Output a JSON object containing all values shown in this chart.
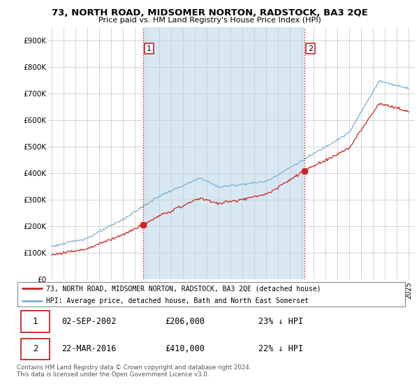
{
  "title": "73, NORTH ROAD, MIDSOMER NORTON, RADSTOCK, BA3 2QE",
  "subtitle": "Price paid vs. HM Land Registry's House Price Index (HPI)",
  "hpi_color": "#7BAFD4",
  "hpi_fill_color": "#D8E8F3",
  "price_color": "#CC2222",
  "vline_color": "#CC2222",
  "background_color": "#ffffff",
  "grid_color": "#cccccc",
  "ylim": [
    0,
    950000
  ],
  "yticks": [
    0,
    100000,
    200000,
    300000,
    400000,
    500000,
    600000,
    700000,
    800000,
    900000
  ],
  "ytick_labels": [
    "£0",
    "£100K",
    "£200K",
    "£300K",
    "£400K",
    "£500K",
    "£600K",
    "£700K",
    "£800K",
    "£900K"
  ],
  "transaction1_date": 2002.67,
  "transaction1_price": 206000,
  "transaction1_label": "1",
  "transaction2_date": 2016.22,
  "transaction2_price": 410000,
  "transaction2_label": "2",
  "legend_line1": "73, NORTH ROAD, MIDSOMER NORTON, RADSTOCK, BA3 2QE (detached house)",
  "legend_line2": "HPI: Average price, detached house, Bath and North East Somerset",
  "table_row1": [
    "1",
    "02-SEP-2002",
    "£206,000",
    "23% ↓ HPI"
  ],
  "table_row2": [
    "2",
    "22-MAR-2016",
    "£410,000",
    "22% ↓ HPI"
  ],
  "footnote": "Contains HM Land Registry data © Crown copyright and database right 2024.\nThis data is licensed under the Open Government Licence v3.0."
}
